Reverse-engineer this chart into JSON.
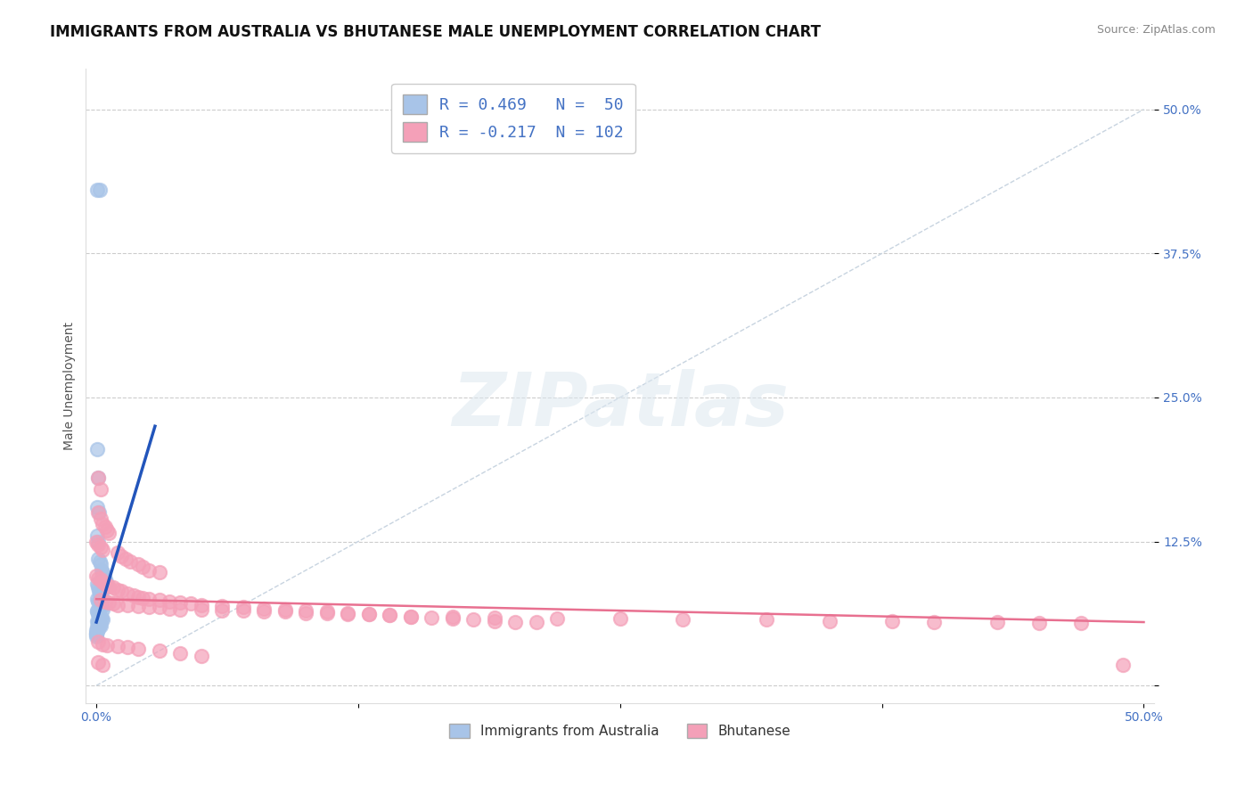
{
  "title": "IMMIGRANTS FROM AUSTRALIA VS BHUTANESE MALE UNEMPLOYMENT CORRELATION CHART",
  "source": "Source: ZipAtlas.com",
  "ylabel": "Male Unemployment",
  "xlim": [
    0.0,
    0.5
  ],
  "ylim": [
    -0.015,
    0.535
  ],
  "yticks": [
    0.0,
    0.125,
    0.25,
    0.375,
    0.5
  ],
  "xticks": [
    0.0,
    0.125,
    0.25,
    0.375,
    0.5
  ],
  "xtick_labels": [
    "0.0%",
    "",
    "",
    "",
    "50.0%"
  ],
  "ytick_labels_right": [
    "",
    "12.5%",
    "25.0%",
    "37.5%",
    "50.0%"
  ],
  "legend_text1": "R = 0.469   N =  50",
  "legend_text2": "R = -0.217  N = 102",
  "australia_color": "#a8c4e8",
  "bhutanese_color": "#f4a0b8",
  "australia_line_color": "#2255bb",
  "bhutanese_line_color": "#e87090",
  "diag_color": "#c8d4e0",
  "background_color": "#ffffff",
  "grid_color": "#cccccc",
  "title_fontsize": 12,
  "label_fontsize": 10,
  "tick_fontsize": 10,
  "watermark": "ZIPatlas",
  "aus_trend_x": [
    0.0,
    0.028
  ],
  "aus_trend_y": [
    0.055,
    0.225
  ],
  "bhu_trend_x": [
    0.0,
    0.5
  ],
  "bhu_trend_y": [
    0.075,
    0.055
  ],
  "australia_scatter": [
    [
      0.0005,
      0.43
    ],
    [
      0.0015,
      0.43
    ],
    [
      0.0002,
      0.205
    ],
    [
      0.0008,
      0.18
    ],
    [
      0.0005,
      0.155
    ],
    [
      0.0012,
      0.15
    ],
    [
      0.0003,
      0.13
    ],
    [
      0.001,
      0.125
    ],
    [
      0.0006,
      0.11
    ],
    [
      0.0015,
      0.108
    ],
    [
      0.002,
      0.105
    ],
    [
      0.0025,
      0.1
    ],
    [
      0.003,
      0.098
    ],
    [
      0.0035,
      0.095
    ],
    [
      0.004,
      0.092
    ],
    [
      0.0045,
      0.09
    ],
    [
      0.0002,
      0.088
    ],
    [
      0.0008,
      0.085
    ],
    [
      0.0012,
      0.082
    ],
    [
      0.0018,
      0.08
    ],
    [
      0.0022,
      0.078
    ],
    [
      0.0028,
      0.076
    ],
    [
      0.0005,
      0.075
    ],
    [
      0.001,
      0.073
    ],
    [
      0.0015,
      0.072
    ],
    [
      0.002,
      0.07
    ],
    [
      0.0025,
      0.068
    ],
    [
      0.003,
      0.066
    ],
    [
      0.0002,
      0.065
    ],
    [
      0.0005,
      0.064
    ],
    [
      0.0008,
      0.062
    ],
    [
      0.0012,
      0.061
    ],
    [
      0.0015,
      0.06
    ],
    [
      0.0018,
      0.059
    ],
    [
      0.0025,
      0.058
    ],
    [
      0.003,
      0.057
    ],
    [
      0.0003,
      0.056
    ],
    [
      0.0006,
      0.055
    ],
    [
      0.001,
      0.054
    ],
    [
      0.0015,
      0.053
    ],
    [
      0.002,
      0.052
    ],
    [
      0.0005,
      0.051
    ],
    [
      0.0008,
      0.05
    ],
    [
      0.001,
      0.049
    ],
    [
      0.0,
      0.048
    ],
    [
      0.0002,
      0.047
    ],
    [
      0.0,
      0.046
    ],
    [
      0.0,
      0.045
    ],
    [
      0.0,
      0.044
    ],
    [
      0.0,
      0.043
    ]
  ],
  "bhutanese_scatter": [
    [
      0.001,
      0.18
    ],
    [
      0.002,
      0.17
    ],
    [
      0.001,
      0.15
    ],
    [
      0.002,
      0.145
    ],
    [
      0.003,
      0.14
    ],
    [
      0.004,
      0.138
    ],
    [
      0.005,
      0.135
    ],
    [
      0.006,
      0.132
    ],
    [
      0.0,
      0.125
    ],
    [
      0.001,
      0.122
    ],
    [
      0.002,
      0.12
    ],
    [
      0.003,
      0.118
    ],
    [
      0.01,
      0.115
    ],
    [
      0.012,
      0.112
    ],
    [
      0.014,
      0.11
    ],
    [
      0.016,
      0.108
    ],
    [
      0.02,
      0.105
    ],
    [
      0.022,
      0.103
    ],
    [
      0.025,
      0.1
    ],
    [
      0.03,
      0.098
    ],
    [
      0.0,
      0.095
    ],
    [
      0.001,
      0.093
    ],
    [
      0.002,
      0.092
    ],
    [
      0.003,
      0.09
    ],
    [
      0.004,
      0.088
    ],
    [
      0.005,
      0.087
    ],
    [
      0.006,
      0.086
    ],
    [
      0.008,
      0.085
    ],
    [
      0.01,
      0.083
    ],
    [
      0.012,
      0.082
    ],
    [
      0.015,
      0.08
    ],
    [
      0.018,
      0.078
    ],
    [
      0.02,
      0.077
    ],
    [
      0.022,
      0.076
    ],
    [
      0.025,
      0.075
    ],
    [
      0.03,
      0.074
    ],
    [
      0.035,
      0.073
    ],
    [
      0.04,
      0.072
    ],
    [
      0.045,
      0.071
    ],
    [
      0.05,
      0.07
    ],
    [
      0.06,
      0.069
    ],
    [
      0.07,
      0.068
    ],
    [
      0.08,
      0.067
    ],
    [
      0.09,
      0.066
    ],
    [
      0.1,
      0.065
    ],
    [
      0.11,
      0.064
    ],
    [
      0.12,
      0.063
    ],
    [
      0.13,
      0.062
    ],
    [
      0.14,
      0.061
    ],
    [
      0.15,
      0.06
    ],
    [
      0.16,
      0.059
    ],
    [
      0.17,
      0.058
    ],
    [
      0.18,
      0.057
    ],
    [
      0.19,
      0.056
    ],
    [
      0.2,
      0.055
    ],
    [
      0.21,
      0.055
    ],
    [
      0.002,
      0.074
    ],
    [
      0.004,
      0.073
    ],
    [
      0.006,
      0.072
    ],
    [
      0.008,
      0.071
    ],
    [
      0.01,
      0.07
    ],
    [
      0.015,
      0.07
    ],
    [
      0.02,
      0.069
    ],
    [
      0.025,
      0.068
    ],
    [
      0.03,
      0.068
    ],
    [
      0.035,
      0.067
    ],
    [
      0.04,
      0.066
    ],
    [
      0.05,
      0.066
    ],
    [
      0.06,
      0.065
    ],
    [
      0.07,
      0.065
    ],
    [
      0.08,
      0.064
    ],
    [
      0.09,
      0.064
    ],
    [
      0.1,
      0.063
    ],
    [
      0.11,
      0.063
    ],
    [
      0.12,
      0.062
    ],
    [
      0.13,
      0.062
    ],
    [
      0.14,
      0.061
    ],
    [
      0.15,
      0.06
    ],
    [
      0.17,
      0.06
    ],
    [
      0.19,
      0.059
    ],
    [
      0.22,
      0.058
    ],
    [
      0.25,
      0.058
    ],
    [
      0.28,
      0.057
    ],
    [
      0.32,
      0.057
    ],
    [
      0.35,
      0.056
    ],
    [
      0.38,
      0.056
    ],
    [
      0.4,
      0.055
    ],
    [
      0.43,
      0.055
    ],
    [
      0.45,
      0.054
    ],
    [
      0.47,
      0.054
    ],
    [
      0.001,
      0.038
    ],
    [
      0.003,
      0.036
    ],
    [
      0.005,
      0.035
    ],
    [
      0.01,
      0.034
    ],
    [
      0.015,
      0.033
    ],
    [
      0.02,
      0.032
    ],
    [
      0.03,
      0.03
    ],
    [
      0.04,
      0.028
    ],
    [
      0.05,
      0.026
    ],
    [
      0.001,
      0.02
    ],
    [
      0.003,
      0.018
    ],
    [
      0.49,
      0.018
    ]
  ]
}
